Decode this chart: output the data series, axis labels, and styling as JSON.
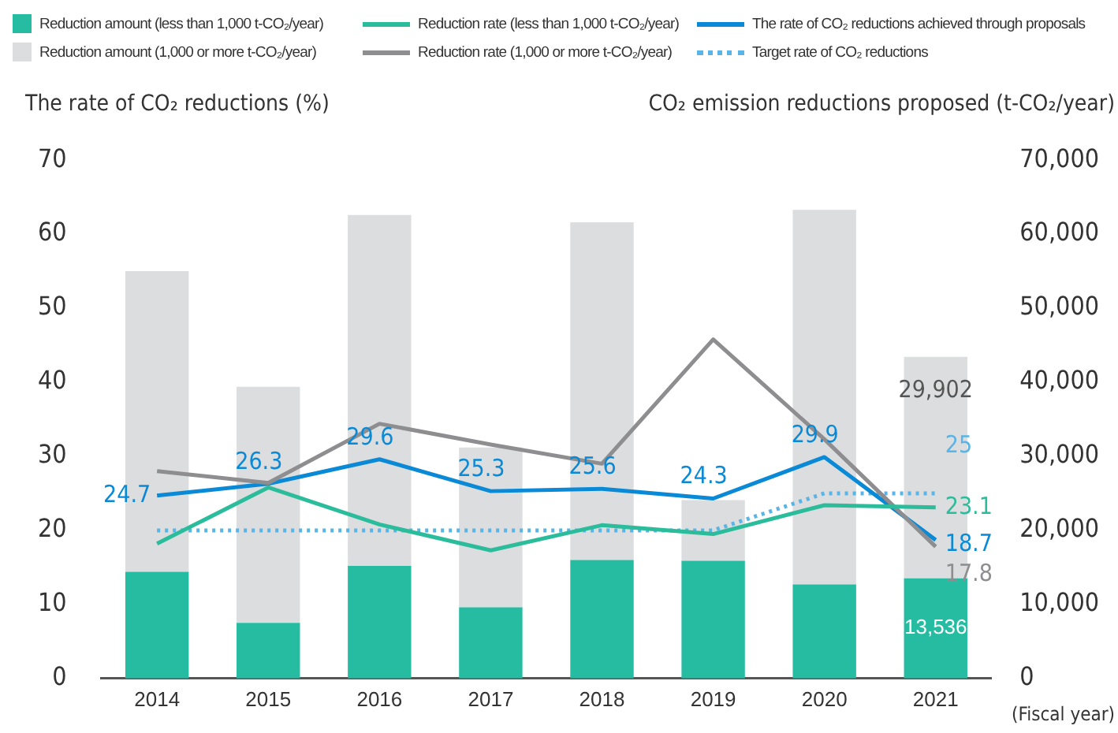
{
  "chart_data": {
    "type": "bar",
    "stacked": true,
    "legend": "top",
    "xlabel": "(Fiscal year)",
    "ylabel": "The rate of CO₂ reductions (%)",
    "y2label": "CO₂ emission reductions proposed (t-CO₂/year)",
    "categories": [
      "2014",
      "2015",
      "2016",
      "2017",
      "2018",
      "2019",
      "2020",
      "2021"
    ],
    "ylim": [
      0,
      70
    ],
    "yticks": [
      0,
      10,
      20,
      30,
      40,
      50,
      60,
      70
    ],
    "y2lim": [
      0,
      70000
    ],
    "y2ticks": [
      {
        "value": 0,
        "label": "0"
      },
      {
        "value": 10000,
        "label": "10,000"
      },
      {
        "value": 20000,
        "label": "20,000"
      },
      {
        "value": 30000,
        "label": "30,000"
      },
      {
        "value": 40000,
        "label": "40,000"
      },
      {
        "value": 50000,
        "label": "50,000"
      },
      {
        "value": 60000,
        "label": "60,000"
      },
      {
        "value": 70000,
        "label": "70,000"
      }
    ],
    "grid": false,
    "series": [
      {
        "name": "Reduction amount (less than 1,000 t-CO₂/year)",
        "axis": "y2",
        "color": "#25bca2",
        "values": [
          14400,
          7500,
          15200,
          9600,
          16000,
          15900,
          12700,
          13536
        ],
        "value_labels": [
          null,
          null,
          null,
          null,
          null,
          null,
          null,
          "13,536"
        ]
      },
      {
        "name": "Reduction amount (1,000 or more t-CO₂/year)",
        "axis": "y2",
        "color": "#dcdddf",
        "values": [
          40600,
          31900,
          47400,
          21600,
          45600,
          8200,
          50600,
          29902
        ],
        "value_labels": [
          null,
          null,
          null,
          null,
          null,
          null,
          null,
          "29,902"
        ]
      },
      {
        "name": "Reduction rate (less than 1,000 t-CO₂/year)",
        "type": "line",
        "axis": "y",
        "color": "#2bbd9b",
        "line_style": "solid",
        "values": [
          18.2,
          25.8,
          20.8,
          17.3,
          20.7,
          19.5,
          23.4,
          23.1
        ],
        "value_labels": [
          null,
          null,
          null,
          null,
          null,
          null,
          null,
          "23.1"
        ]
      },
      {
        "name": "Reduction rate (1,000 or more t-CO₂/year)",
        "type": "line",
        "axis": "y",
        "color": "#8e8e90",
        "line_style": "solid",
        "values": [
          28.0,
          26.4,
          34.4,
          31.6,
          29.0,
          45.8,
          32.3,
          17.8
        ],
        "value_labels": [
          null,
          null,
          null,
          null,
          null,
          null,
          null,
          "17.8"
        ]
      },
      {
        "name": "The rate of CO₂ reductions achieved through proposals",
        "type": "line",
        "axis": "y",
        "color": "#0a8ad6",
        "line_style": "solid",
        "values": [
          24.7,
          26.3,
          29.6,
          25.3,
          25.6,
          24.3,
          29.9,
          18.7
        ],
        "value_labels": [
          "24.7",
          "26.3",
          "29.6",
          "25.3",
          "25.6",
          "24.3",
          "29.9",
          "18.7"
        ]
      },
      {
        "name": "Target rate of CO₂ reductions",
        "type": "line",
        "axis": "y",
        "color": "#5ab4e6",
        "line_style": "dotted",
        "values": [
          20,
          20,
          20,
          20,
          20,
          20,
          25,
          25
        ],
        "value_labels": [
          null,
          null,
          null,
          null,
          null,
          null,
          null,
          "25"
        ]
      }
    ]
  }
}
